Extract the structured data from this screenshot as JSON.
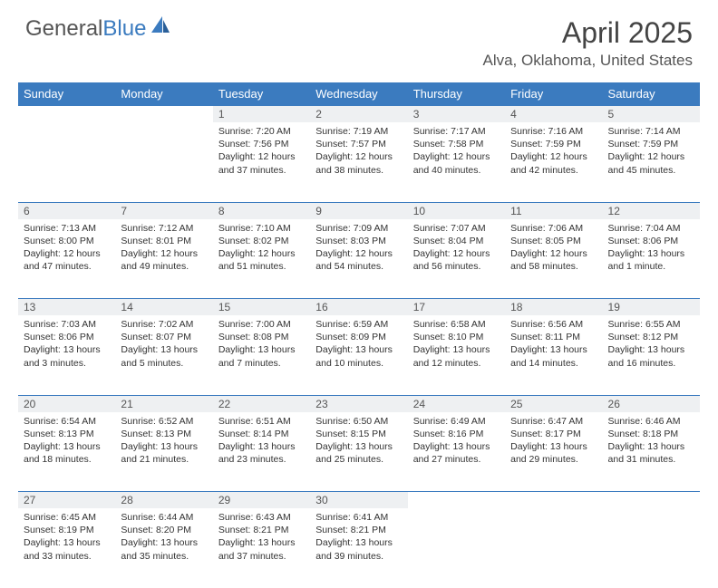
{
  "logo": {
    "text1": "General",
    "text2": "Blue"
  },
  "title": "April 2025",
  "location": "Alva, Oklahoma, United States",
  "colors": {
    "header_bg": "#3b7bbf",
    "header_text": "#ffffff",
    "daynum_bg": "#eef0f2",
    "border": "#3b7bbf",
    "body_text": "#333333"
  },
  "fonts": {
    "title_size": 32,
    "location_size": 17,
    "header_size": 13,
    "daynum_size": 12,
    "body_size": 10.5
  },
  "weekdays": [
    "Sunday",
    "Monday",
    "Tuesday",
    "Wednesday",
    "Thursday",
    "Friday",
    "Saturday"
  ],
  "weeks": [
    [
      null,
      null,
      {
        "n": "1",
        "sr": "7:20 AM",
        "ss": "7:56 PM",
        "dl": "12 hours and 37 minutes."
      },
      {
        "n": "2",
        "sr": "7:19 AM",
        "ss": "7:57 PM",
        "dl": "12 hours and 38 minutes."
      },
      {
        "n": "3",
        "sr": "7:17 AM",
        "ss": "7:58 PM",
        "dl": "12 hours and 40 minutes."
      },
      {
        "n": "4",
        "sr": "7:16 AM",
        "ss": "7:59 PM",
        "dl": "12 hours and 42 minutes."
      },
      {
        "n": "5",
        "sr": "7:14 AM",
        "ss": "7:59 PM",
        "dl": "12 hours and 45 minutes."
      }
    ],
    [
      {
        "n": "6",
        "sr": "7:13 AM",
        "ss": "8:00 PM",
        "dl": "12 hours and 47 minutes."
      },
      {
        "n": "7",
        "sr": "7:12 AM",
        "ss": "8:01 PM",
        "dl": "12 hours and 49 minutes."
      },
      {
        "n": "8",
        "sr": "7:10 AM",
        "ss": "8:02 PM",
        "dl": "12 hours and 51 minutes."
      },
      {
        "n": "9",
        "sr": "7:09 AM",
        "ss": "8:03 PM",
        "dl": "12 hours and 54 minutes."
      },
      {
        "n": "10",
        "sr": "7:07 AM",
        "ss": "8:04 PM",
        "dl": "12 hours and 56 minutes."
      },
      {
        "n": "11",
        "sr": "7:06 AM",
        "ss": "8:05 PM",
        "dl": "12 hours and 58 minutes."
      },
      {
        "n": "12",
        "sr": "7:04 AM",
        "ss": "8:06 PM",
        "dl": "13 hours and 1 minute."
      }
    ],
    [
      {
        "n": "13",
        "sr": "7:03 AM",
        "ss": "8:06 PM",
        "dl": "13 hours and 3 minutes."
      },
      {
        "n": "14",
        "sr": "7:02 AM",
        "ss": "8:07 PM",
        "dl": "13 hours and 5 minutes."
      },
      {
        "n": "15",
        "sr": "7:00 AM",
        "ss": "8:08 PM",
        "dl": "13 hours and 7 minutes."
      },
      {
        "n": "16",
        "sr": "6:59 AM",
        "ss": "8:09 PM",
        "dl": "13 hours and 10 minutes."
      },
      {
        "n": "17",
        "sr": "6:58 AM",
        "ss": "8:10 PM",
        "dl": "13 hours and 12 minutes."
      },
      {
        "n": "18",
        "sr": "6:56 AM",
        "ss": "8:11 PM",
        "dl": "13 hours and 14 minutes."
      },
      {
        "n": "19",
        "sr": "6:55 AM",
        "ss": "8:12 PM",
        "dl": "13 hours and 16 minutes."
      }
    ],
    [
      {
        "n": "20",
        "sr": "6:54 AM",
        "ss": "8:13 PM",
        "dl": "13 hours and 18 minutes."
      },
      {
        "n": "21",
        "sr": "6:52 AM",
        "ss": "8:13 PM",
        "dl": "13 hours and 21 minutes."
      },
      {
        "n": "22",
        "sr": "6:51 AM",
        "ss": "8:14 PM",
        "dl": "13 hours and 23 minutes."
      },
      {
        "n": "23",
        "sr": "6:50 AM",
        "ss": "8:15 PM",
        "dl": "13 hours and 25 minutes."
      },
      {
        "n": "24",
        "sr": "6:49 AM",
        "ss": "8:16 PM",
        "dl": "13 hours and 27 minutes."
      },
      {
        "n": "25",
        "sr": "6:47 AM",
        "ss": "8:17 PM",
        "dl": "13 hours and 29 minutes."
      },
      {
        "n": "26",
        "sr": "6:46 AM",
        "ss": "8:18 PM",
        "dl": "13 hours and 31 minutes."
      }
    ],
    [
      {
        "n": "27",
        "sr": "6:45 AM",
        "ss": "8:19 PM",
        "dl": "13 hours and 33 minutes."
      },
      {
        "n": "28",
        "sr": "6:44 AM",
        "ss": "8:20 PM",
        "dl": "13 hours and 35 minutes."
      },
      {
        "n": "29",
        "sr": "6:43 AM",
        "ss": "8:21 PM",
        "dl": "13 hours and 37 minutes."
      },
      {
        "n": "30",
        "sr": "6:41 AM",
        "ss": "8:21 PM",
        "dl": "13 hours and 39 minutes."
      },
      null,
      null,
      null
    ]
  ],
  "labels": {
    "sunrise": "Sunrise: ",
    "sunset": "Sunset: ",
    "daylight": "Daylight: "
  }
}
